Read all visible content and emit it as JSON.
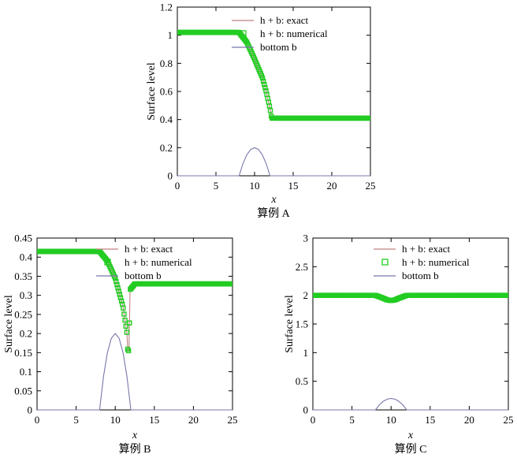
{
  "chart_data": [
    {
      "type": "line",
      "caption": "算例 A",
      "xlabel": "x",
      "ylabel": "Surface level",
      "xlim": [
        0,
        25
      ],
      "ylim": [
        0,
        1.2
      ],
      "xticks": [
        "0",
        "5",
        "10",
        "15",
        "20",
        "25"
      ],
      "yticks": [
        "0",
        "0.2",
        "0.4",
        "0.6",
        "0.8",
        "1",
        "1.2"
      ],
      "legend_position": "top-right",
      "series": [
        {
          "name": "h + b: exact",
          "style": "line",
          "color": "#c08080",
          "x": [
            0,
            8,
            9,
            10,
            11,
            11.5,
            12,
            12.2,
            25
          ],
          "y": [
            1.02,
            1.02,
            0.95,
            0.83,
            0.7,
            0.6,
            0.48,
            0.41,
            0.41
          ]
        },
        {
          "name": "h + b: numerical",
          "style": "markers",
          "color": "#22cc22",
          "x": [
            0,
            8,
            9,
            10,
            11,
            11.5,
            12,
            12.2,
            25
          ],
          "y": [
            1.02,
            1.02,
            0.95,
            0.83,
            0.7,
            0.6,
            0.48,
            0.41,
            0.41
          ]
        },
        {
          "name": "bottom b",
          "style": "line",
          "color": "#7777aa",
          "x": [
            0,
            8,
            8.5,
            9,
            9.5,
            10,
            10.5,
            11,
            11.5,
            12,
            25
          ],
          "y": [
            0,
            0,
            0.0875,
            0.15,
            0.1875,
            0.2,
            0.1875,
            0.15,
            0.0875,
            0,
            0
          ]
        }
      ]
    },
    {
      "type": "line",
      "caption": "算例 B",
      "xlabel": "x",
      "ylabel": "Surface level",
      "xlim": [
        0,
        25
      ],
      "ylim": [
        0,
        0.45
      ],
      "xticks": [
        "0",
        "5",
        "10",
        "15",
        "20",
        "25"
      ],
      "yticks": [
        "0",
        "0.05",
        "0.1",
        "0.15",
        "0.2",
        "0.25",
        "0.3",
        "0.35",
        "0.4",
        "0.45"
      ],
      "legend_position": "top-right",
      "series": [
        {
          "name": "h + b: exact",
          "style": "line",
          "color": "#c08080",
          "x": [
            0,
            8,
            9,
            10,
            11,
            11.5,
            11.6,
            11.75,
            11.9,
            12.5,
            25
          ],
          "y": [
            0.415,
            0.415,
            0.39,
            0.345,
            0.27,
            0.2,
            0.155,
            0.155,
            0.315,
            0.33,
            0.33
          ]
        },
        {
          "name": "h + b: numerical",
          "style": "markers",
          "color": "#22cc22",
          "x": [
            0,
            8,
            9,
            10,
            11,
            11.5,
            11.6,
            11.75,
            11.9,
            12.5,
            25
          ],
          "y": [
            0.415,
            0.415,
            0.39,
            0.345,
            0.27,
            0.2,
            0.155,
            0.155,
            0.315,
            0.33,
            0.33
          ]
        },
        {
          "name": "bottom b",
          "style": "line",
          "color": "#7777aa",
          "x": [
            0,
            8,
            8.5,
            9,
            9.5,
            10,
            10.5,
            11,
            11.5,
            12,
            25
          ],
          "y": [
            0,
            0,
            0.0875,
            0.15,
            0.1875,
            0.2,
            0.1875,
            0.15,
            0.0875,
            0,
            0
          ]
        }
      ]
    },
    {
      "type": "line",
      "caption": "算例 C",
      "xlabel": "x",
      "ylabel": "Surface level",
      "xlim": [
        0,
        25
      ],
      "ylim": [
        0,
        3
      ],
      "xticks": [
        "0",
        "5",
        "10",
        "15",
        "20",
        "25"
      ],
      "yticks": [
        "0",
        "0.5",
        "1",
        "1.5",
        "2",
        "2.5",
        "3"
      ],
      "legend_position": "top-right",
      "series": [
        {
          "name": "h + b: exact",
          "style": "line",
          "color": "#c08080",
          "x": [
            0,
            8,
            9,
            9.5,
            10,
            10.5,
            11,
            12,
            25
          ],
          "y": [
            2,
            2,
            1.95,
            1.92,
            1.91,
            1.92,
            1.95,
            2,
            2
          ]
        },
        {
          "name": "h + b: numerical",
          "style": "markers",
          "color": "#22cc22",
          "x": [
            0,
            8,
            9,
            9.5,
            10,
            10.5,
            11,
            12,
            25
          ],
          "y": [
            2,
            2,
            1.95,
            1.92,
            1.91,
            1.92,
            1.95,
            2,
            2
          ]
        },
        {
          "name": "bottom b",
          "style": "line",
          "color": "#7777aa",
          "x": [
            0,
            8,
            8.5,
            9,
            9.5,
            10,
            10.5,
            11,
            11.5,
            12,
            25
          ],
          "y": [
            0,
            0,
            0.0875,
            0.15,
            0.1875,
            0.2,
            0.1875,
            0.15,
            0.0875,
            0,
            0
          ]
        }
      ]
    }
  ]
}
